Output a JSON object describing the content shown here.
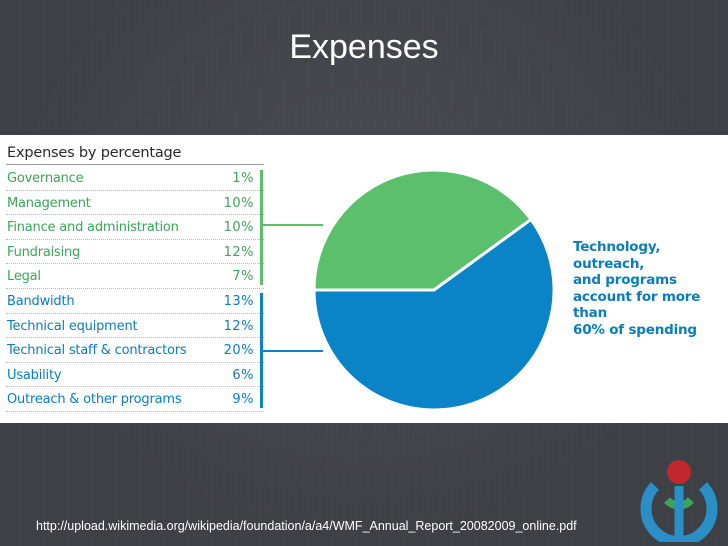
{
  "slide": {
    "title": "Expenses",
    "source_url": "http://upload.wikimedia.org/wikipedia/foundation/a/a4/WMF_Annual_Report_20082009_online.pdf"
  },
  "chart_data": {
    "type": "pie",
    "title": "Expenses by percentage",
    "categories": [
      "Governance",
      "Management",
      "Finance and administration",
      "Fundraising",
      "Legal",
      "Bandwidth",
      "Technical equipment",
      "Technical staff & contractors",
      "Usability",
      "Outreach & other programs"
    ],
    "values": [
      1,
      10,
      10,
      12,
      7,
      13,
      12,
      20,
      6,
      9
    ],
    "value_labels": [
      "1%",
      "10%",
      "10%",
      "12%",
      "7%",
      "13%",
      "12%",
      "20%",
      "6%",
      "9%"
    ],
    "groups": [
      {
        "color": "#5bbf6b",
        "label_color": "#3aa55a",
        "members": [
          0,
          1,
          2,
          3,
          4
        ]
      },
      {
        "color": "#0a84c6",
        "label_color": "#0a7dbe",
        "members": [
          5,
          6,
          7,
          8,
          9
        ]
      }
    ],
    "annotation": [
      "Technology, outreach,",
      "and programs",
      "account for more than",
      "60% of spending"
    ]
  },
  "colors": {
    "background": "#3d4045",
    "panel": "#ffffff",
    "green": "#5bbf6b",
    "blue": "#0a84c6",
    "title_text": "#ffffff"
  }
}
